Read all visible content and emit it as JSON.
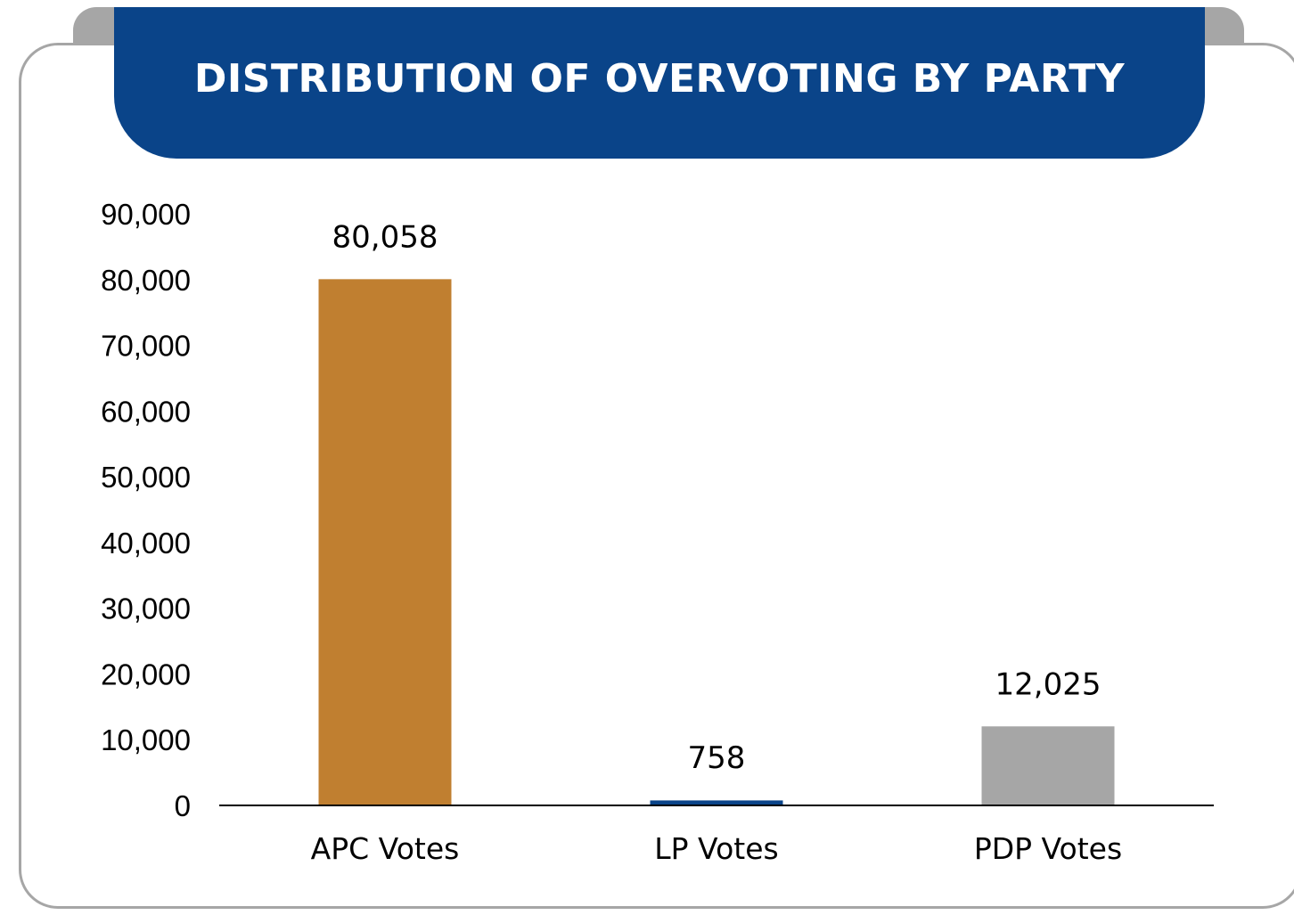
{
  "chart_data": {
    "type": "bar",
    "title": "DISTRIBUTION OF OVERVOTING BY PARTY",
    "categories": [
      "APC Votes",
      "LP Votes",
      "PDP Votes"
    ],
    "values": [
      80058,
      758,
      12025
    ],
    "data_labels": [
      "80,058",
      "758",
      "12,025"
    ],
    "bar_colors": [
      "#c07f30",
      "#0a4489",
      "#a6a6a6"
    ],
    "ylim": [
      0,
      90000
    ],
    "yticks": [
      0,
      10000,
      20000,
      30000,
      40000,
      50000,
      60000,
      70000,
      80000,
      90000
    ],
    "ytick_labels": [
      "0",
      "10,000",
      "20,000",
      "30,000",
      "40,000",
      "50,000",
      "60,000",
      "70,000",
      "80,000",
      "90,000"
    ],
    "grid": false,
    "xlabel": "",
    "ylabel": ""
  },
  "colors": {
    "banner": "#0a4489",
    "frame": "#a6a6a6"
  }
}
